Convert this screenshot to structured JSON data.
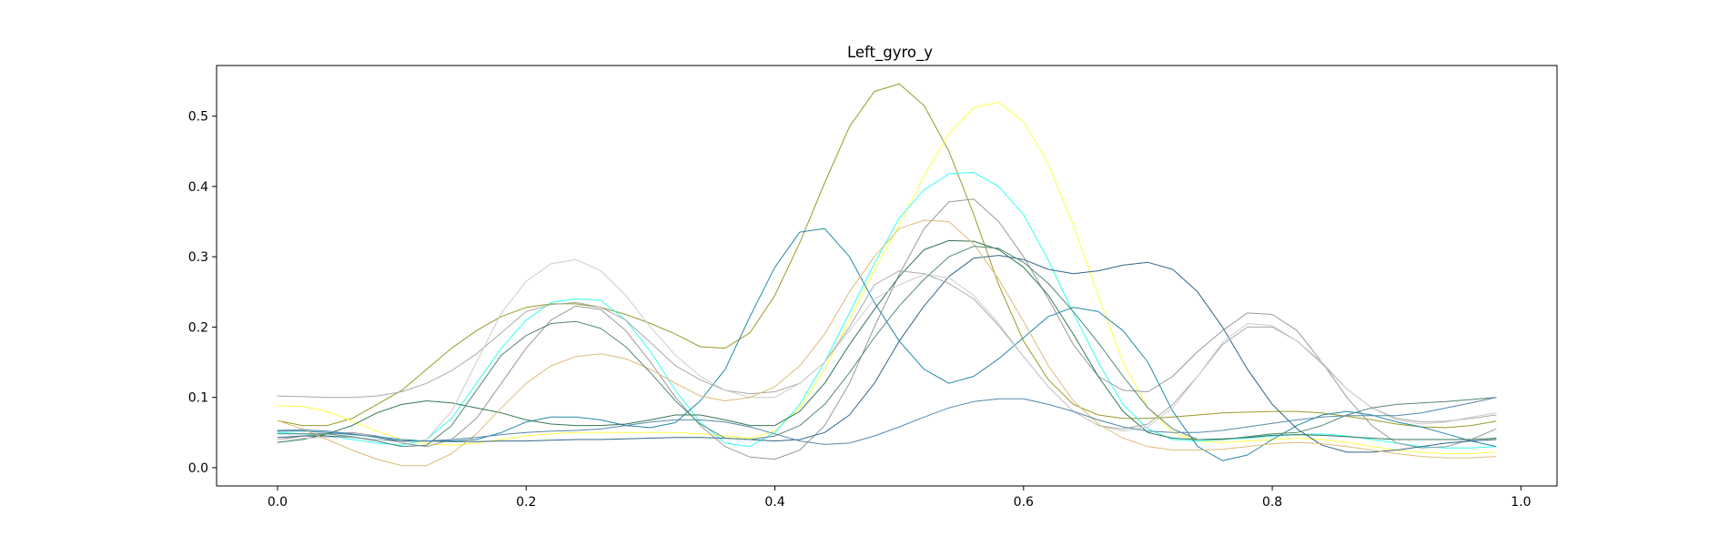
{
  "chart_data": {
    "type": "line",
    "title": "Left_gyro_y",
    "xlabel": "",
    "ylabel": "",
    "xlim": [
      -0.049,
      1.029
    ],
    "ylim": [
      -0.026,
      0.572
    ],
    "grid": false,
    "xticks": [
      0.0,
      0.2,
      0.4,
      0.6,
      0.8,
      1.0
    ],
    "xtick_labels": [
      "0.0",
      "0.2",
      "0.4",
      "0.6",
      "0.8",
      "1.0"
    ],
    "yticks": [
      0.0,
      0.1,
      0.2,
      0.3,
      0.4,
      0.5
    ],
    "ytick_labels": [
      "0.0",
      "0.1",
      "0.2",
      "0.3",
      "0.4",
      "0.5"
    ],
    "x": [
      0.0,
      0.02,
      0.04,
      0.06,
      0.08,
      0.1,
      0.12,
      0.14,
      0.16,
      0.18,
      0.2,
      0.22,
      0.24,
      0.26,
      0.28,
      0.3,
      0.32,
      0.34,
      0.36,
      0.38,
      0.4,
      0.42,
      0.44,
      0.46,
      0.48,
      0.5,
      0.52,
      0.54,
      0.56,
      0.58,
      0.6,
      0.62,
      0.64,
      0.66,
      0.68,
      0.7,
      0.72,
      0.74,
      0.76,
      0.78,
      0.8,
      0.82,
      0.84,
      0.86,
      0.88,
      0.9,
      0.92,
      0.94,
      0.96,
      0.98
    ],
    "series": [
      {
        "color": "#9a9a28",
        "values": [
          0.067,
          0.06,
          0.06,
          0.07,
          0.09,
          0.11,
          0.14,
          0.17,
          0.195,
          0.215,
          0.228,
          0.233,
          0.233,
          0.228,
          0.218,
          0.205,
          0.19,
          0.172,
          0.17,
          0.192,
          0.245,
          0.32,
          0.405,
          0.485,
          0.535,
          0.546,
          0.515,
          0.45,
          0.36,
          0.26,
          0.18,
          0.125,
          0.09,
          0.075,
          0.07,
          0.07,
          0.072,
          0.075,
          0.078,
          0.079,
          0.08,
          0.08,
          0.078,
          0.073,
          0.068,
          0.062,
          0.058,
          0.057,
          0.06,
          0.066
        ]
      },
      {
        "color": "#ffff44",
        "values": [
          0.088,
          0.087,
          0.08,
          0.066,
          0.052,
          0.04,
          0.034,
          0.032,
          0.035,
          0.04,
          0.045,
          0.048,
          0.05,
          0.05,
          0.05,
          0.05,
          0.05,
          0.048,
          0.045,
          0.042,
          0.052,
          0.085,
          0.14,
          0.21,
          0.28,
          0.345,
          0.415,
          0.475,
          0.512,
          0.52,
          0.492,
          0.432,
          0.345,
          0.245,
          0.15,
          0.085,
          0.05,
          0.038,
          0.036,
          0.038,
          0.04,
          0.042,
          0.04,
          0.036,
          0.03,
          0.025,
          0.022,
          0.02,
          0.02,
          0.022
        ]
      },
      {
        "color": "#33ffee",
        "values": [
          0.05,
          0.048,
          0.045,
          0.04,
          0.035,
          0.032,
          0.04,
          0.07,
          0.12,
          0.17,
          0.21,
          0.235,
          0.24,
          0.238,
          0.21,
          0.165,
          0.11,
          0.065,
          0.035,
          0.03,
          0.05,
          0.09,
          0.15,
          0.22,
          0.29,
          0.355,
          0.395,
          0.418,
          0.42,
          0.4,
          0.36,
          0.295,
          0.22,
          0.15,
          0.09,
          0.055,
          0.04,
          0.038,
          0.04,
          0.042,
          0.045,
          0.047,
          0.048,
          0.045,
          0.04,
          0.035,
          0.03,
          0.028,
          0.028,
          0.03
        ]
      },
      {
        "color": "#999999",
        "values": [
          0.04,
          0.045,
          0.048,
          0.05,
          0.045,
          0.035,
          0.03,
          0.04,
          0.07,
          0.12,
          0.17,
          0.21,
          0.23,
          0.225,
          0.195,
          0.15,
          0.1,
          0.06,
          0.03,
          0.015,
          0.012,
          0.025,
          0.06,
          0.12,
          0.2,
          0.275,
          0.34,
          0.378,
          0.382,
          0.35,
          0.3,
          0.24,
          0.175,
          0.13,
          0.11,
          0.108,
          0.13,
          0.165,
          0.195,
          0.22,
          0.218,
          0.195,
          0.15,
          0.1,
          0.06,
          0.035,
          0.028,
          0.03,
          0.04,
          0.055
        ]
      },
      {
        "color": "#2288aa",
        "values": [
          0.052,
          0.052,
          0.05,
          0.047,
          0.044,
          0.04,
          0.038,
          0.038,
          0.04,
          0.05,
          0.065,
          0.072,
          0.072,
          0.068,
          0.06,
          0.057,
          0.064,
          0.095,
          0.14,
          0.215,
          0.285,
          0.335,
          0.34,
          0.3,
          0.235,
          0.18,
          0.14,
          0.12,
          0.13,
          0.155,
          0.185,
          0.215,
          0.228,
          0.222,
          0.195,
          0.15,
          0.08,
          0.03,
          0.01,
          0.018,
          0.04,
          0.06,
          0.075,
          0.08,
          0.075,
          0.065,
          0.058,
          0.048,
          0.038,
          0.03
        ]
      },
      {
        "color": "#336688",
        "values": [
          0.043,
          0.045,
          0.045,
          0.043,
          0.04,
          0.038,
          0.038,
          0.037,
          0.037,
          0.038,
          0.038,
          0.039,
          0.04,
          0.04,
          0.041,
          0.042,
          0.043,
          0.043,
          0.042,
          0.04,
          0.038,
          0.04,
          0.05,
          0.075,
          0.12,
          0.18,
          0.23,
          0.272,
          0.298,
          0.302,
          0.296,
          0.282,
          0.276,
          0.28,
          0.288,
          0.292,
          0.282,
          0.25,
          0.2,
          0.14,
          0.09,
          0.055,
          0.032,
          0.022,
          0.022,
          0.025,
          0.03,
          0.035,
          0.038,
          0.04
        ]
      },
      {
        "color": "#337755",
        "values": [
          0.036,
          0.04,
          0.048,
          0.06,
          0.078,
          0.09,
          0.095,
          0.092,
          0.085,
          0.078,
          0.068,
          0.062,
          0.06,
          0.06,
          0.062,
          0.068,
          0.075,
          0.075,
          0.068,
          0.06,
          0.06,
          0.08,
          0.12,
          0.175,
          0.225,
          0.272,
          0.31,
          0.323,
          0.322,
          0.31,
          0.285,
          0.245,
          0.19,
          0.13,
          0.08,
          0.05,
          0.042,
          0.04,
          0.041,
          0.043,
          0.046,
          0.047,
          0.046,
          0.044,
          0.042,
          0.04,
          0.04,
          0.04,
          0.04,
          0.042
        ]
      },
      {
        "color": "#aaaaaa",
        "values": [
          0.102,
          0.101,
          0.1,
          0.1,
          0.102,
          0.108,
          0.12,
          0.138,
          0.162,
          0.192,
          0.222,
          0.232,
          0.235,
          0.228,
          0.21,
          0.178,
          0.145,
          0.125,
          0.11,
          0.105,
          0.108,
          0.12,
          0.15,
          0.2,
          0.26,
          0.28,
          0.276,
          0.262,
          0.24,
          0.202,
          0.158,
          0.115,
          0.08,
          0.06,
          0.055,
          0.062,
          0.09,
          0.13,
          0.175,
          0.2,
          0.2,
          0.18,
          0.148,
          0.112,
          0.085,
          0.07,
          0.065,
          0.066,
          0.07,
          0.075
        ]
      },
      {
        "color": "#cccccc",
        "values": [
          0.04,
          0.042,
          0.043,
          0.043,
          0.04,
          0.036,
          0.04,
          0.08,
          0.15,
          0.22,
          0.265,
          0.29,
          0.296,
          0.28,
          0.245,
          0.2,
          0.16,
          0.13,
          0.11,
          0.1,
          0.1,
          0.12,
          0.15,
          0.195,
          0.24,
          0.26,
          0.275,
          0.27,
          0.245,
          0.205,
          0.158,
          0.115,
          0.08,
          0.06,
          0.052,
          0.058,
          0.085,
          0.13,
          0.178,
          0.205,
          0.202,
          0.18,
          0.15,
          0.112,
          0.085,
          0.068,
          0.062,
          0.065,
          0.072,
          0.078
        ]
      },
      {
        "color": "#ddbb77",
        "values": [
          0.067,
          0.055,
          0.04,
          0.025,
          0.012,
          0.003,
          0.003,
          0.02,
          0.048,
          0.085,
          0.12,
          0.145,
          0.158,
          0.162,
          0.155,
          0.14,
          0.12,
          0.102,
          0.095,
          0.1,
          0.115,
          0.145,
          0.19,
          0.25,
          0.3,
          0.34,
          0.352,
          0.35,
          0.318,
          0.268,
          0.208,
          0.145,
          0.095,
          0.062,
          0.042,
          0.03,
          0.025,
          0.025,
          0.026,
          0.03,
          0.034,
          0.036,
          0.034,
          0.03,
          0.025,
          0.02,
          0.016,
          0.014,
          0.014,
          0.016
        ]
      },
      {
        "color": "#558877",
        "values": [
          0.048,
          0.048,
          0.048,
          0.044,
          0.038,
          0.03,
          0.032,
          0.06,
          0.11,
          0.16,
          0.188,
          0.205,
          0.208,
          0.198,
          0.172,
          0.135,
          0.095,
          0.062,
          0.042,
          0.04,
          0.045,
          0.06,
          0.09,
          0.135,
          0.185,
          0.23,
          0.268,
          0.3,
          0.315,
          0.312,
          0.292,
          0.262,
          0.222,
          0.178,
          0.13,
          0.085,
          0.055,
          0.04,
          0.04,
          0.044,
          0.048,
          0.05,
          0.06,
          0.075,
          0.085,
          0.09,
          0.092,
          0.094,
          0.097,
          0.1
        ]
      },
      {
        "color": "#5588aa",
        "values": [
          0.053,
          0.054,
          0.052,
          0.048,
          0.043,
          0.038,
          0.038,
          0.04,
          0.043,
          0.047,
          0.05,
          0.052,
          0.053,
          0.055,
          0.06,
          0.065,
          0.068,
          0.068,
          0.065,
          0.058,
          0.048,
          0.038,
          0.033,
          0.035,
          0.045,
          0.058,
          0.072,
          0.085,
          0.094,
          0.098,
          0.098,
          0.09,
          0.08,
          0.068,
          0.058,
          0.052,
          0.05,
          0.05,
          0.053,
          0.058,
          0.063,
          0.068,
          0.072,
          0.074,
          0.074,
          0.074,
          0.078,
          0.085,
          0.092,
          0.1
        ]
      }
    ]
  }
}
